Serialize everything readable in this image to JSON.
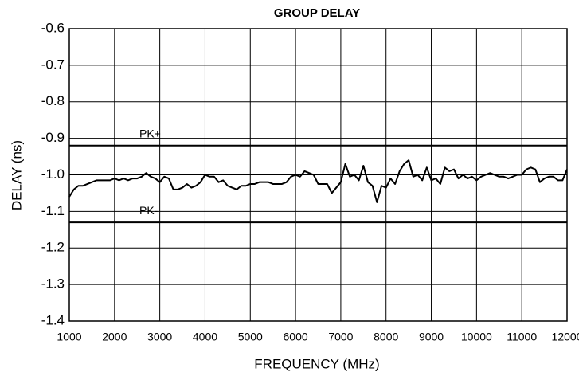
{
  "chart_data": {
    "type": "line",
    "title": "GROUP DELAY",
    "xlabel": "FREQUENCY (MHz)",
    "ylabel": "DELAY (ns)",
    "x": [
      1000,
      1100,
      1200,
      1300,
      1400,
      1500,
      1600,
      1700,
      1800,
      1900,
      2000,
      2100,
      2200,
      2300,
      2400,
      2500,
      2600,
      2700,
      2800,
      2900,
      3000,
      3100,
      3200,
      3300,
      3400,
      3500,
      3600,
      3700,
      3800,
      3900,
      4000,
      4100,
      4200,
      4300,
      4400,
      4500,
      4600,
      4700,
      4800,
      4900,
      5000,
      5100,
      5200,
      5300,
      5400,
      5500,
      5600,
      5700,
      5800,
      5900,
      6000,
      6100,
      6200,
      6300,
      6400,
      6500,
      6600,
      6700,
      6800,
      6900,
      7000,
      7100,
      7200,
      7300,
      7400,
      7500,
      7600,
      7700,
      7800,
      7900,
      8000,
      8100,
      8200,
      8300,
      8400,
      8500,
      8600,
      8700,
      8800,
      8900,
      9000,
      9100,
      9200,
      9300,
      9400,
      9500,
      9600,
      9700,
      9800,
      9900,
      10000,
      10100,
      10200,
      10300,
      10400,
      10500,
      10600,
      10700,
      10800,
      10900,
      11000,
      11100,
      11200,
      11300,
      11400,
      11500,
      11600,
      11700,
      11800,
      11900,
      12000
    ],
    "series": [
      {
        "color": "#000000",
        "values": [
          -1.06,
          -1.04,
          -1.03,
          -1.03,
          -1.025,
          -1.02,
          -1.015,
          -1.015,
          -1.015,
          -1.015,
          -1.01,
          -1.015,
          -1.01,
          -1.015,
          -1.01,
          -1.01,
          -1.005,
          -0.995,
          -1.005,
          -1.01,
          -1.02,
          -1.005,
          -1.01,
          -1.04,
          -1.04,
          -1.035,
          -1.025,
          -1.035,
          -1.03,
          -1.02,
          -1.0,
          -1.005,
          -1.005,
          -1.02,
          -1.015,
          -1.03,
          -1.035,
          -1.04,
          -1.03,
          -1.03,
          -1.025,
          -1.025,
          -1.02,
          -1.02,
          -1.02,
          -1.025,
          -1.025,
          -1.025,
          -1.02,
          -1.005,
          -1.0,
          -1.005,
          -0.99,
          -0.995,
          -1.0,
          -1.025,
          -1.025,
          -1.025,
          -1.05,
          -1.035,
          -1.02,
          -0.97,
          -1.005,
          -1.0,
          -1.015,
          -0.975,
          -1.02,
          -1.03,
          -1.075,
          -1.03,
          -1.035,
          -1.01,
          -1.025,
          -0.99,
          -0.97,
          -0.96,
          -1.005,
          -1.0,
          -1.015,
          -0.98,
          -1.015,
          -1.01,
          -1.025,
          -0.98,
          -0.99,
          -0.985,
          -1.01,
          -1.0,
          -1.01,
          -1.005,
          -1.015,
          -1.005,
          -1.0,
          -0.995,
          -1.0,
          -1.005,
          -1.005,
          -1.01,
          -1.005,
          -1.0,
          -1.0,
          -0.985,
          -0.98,
          -0.985,
          -1.02,
          -1.01,
          -1.005,
          -1.005,
          -1.015,
          -1.015,
          -0.985
        ]
      }
    ],
    "reference_lines": [
      {
        "label": "PK+",
        "value": -0.92
      },
      {
        "label": "PK-",
        "value": -1.13
      }
    ],
    "xlim": [
      1000,
      12000
    ],
    "xticks": [
      1000,
      2000,
      3000,
      4000,
      5000,
      6000,
      7000,
      8000,
      9000,
      10000,
      11000,
      12000
    ],
    "ylim": [
      -1.4,
      -0.6
    ],
    "yticks": [
      -0.6,
      -0.7,
      -0.8,
      -0.9,
      {
        "value": -1,
        "label": "-1.0"
      },
      -1.1,
      -1.2,
      -1.3,
      -1.4
    ],
    "grid": true
  }
}
